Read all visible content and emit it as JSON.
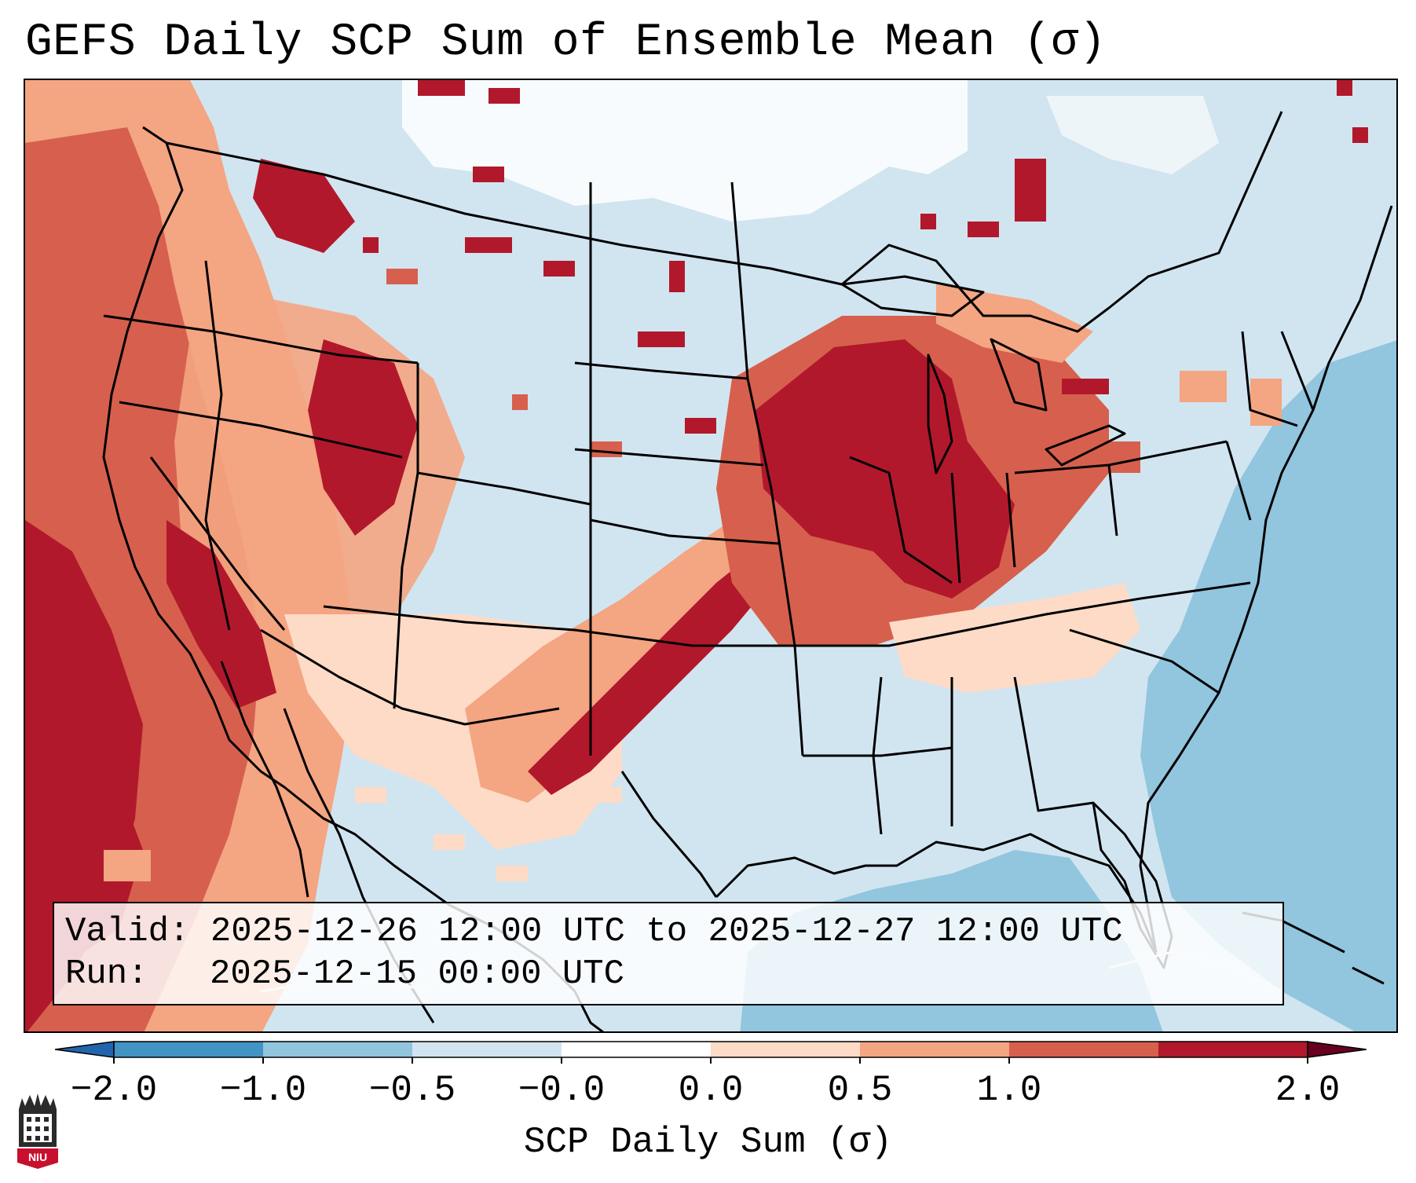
{
  "title": "GEFS Daily SCP Sum of Ensemble Mean (σ)",
  "info": {
    "valid_label": "Valid:",
    "valid_value": "2025-12-26 12:00 UTC to 2025-12-27 12:00 UTC",
    "run_label": "Run:",
    "run_value": "2025-12-15 00:00 UTC"
  },
  "colorbar": {
    "label": "SCP Daily Sum (σ)",
    "ticks": [
      "−2.0",
      "−1.0",
      "−0.5",
      "−0.0",
      "0.0",
      "0.5",
      "1.0",
      "2.0"
    ],
    "colors": [
      "#4393c3",
      "#92c5de",
      "#d1e5f0",
      "#ffffff",
      "#fddbc7",
      "#f4a582",
      "#d6604d",
      "#b2182b"
    ],
    "under_color": "#2166ac",
    "over_color": "#67001f"
  },
  "map": {
    "ocean_color": "#d1e5f0",
    "deep_ocean_color": "#92c5de",
    "land_neutral_color": "#d1e5f0"
  },
  "logo": {
    "text": "NIU",
    "color": "#c8102e"
  }
}
